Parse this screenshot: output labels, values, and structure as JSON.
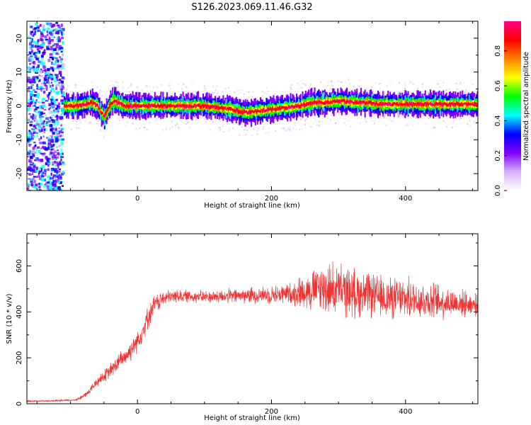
{
  "title": "S126.2023.069.11.46.G32",
  "colors": {
    "snr_line": "#ee3333",
    "colormap": [
      "#ffffff",
      "#d8b0ff",
      "#8000ff",
      "#0000ff",
      "#00ffff",
      "#00ff00",
      "#ffff00",
      "#ff8000",
      "#ff0000",
      "#ff0080"
    ]
  },
  "chart_data": [
    {
      "type": "heatmap",
      "xlabel": "Height of straight line (km)",
      "ylabel": "Frequency (Hz)",
      "xlim": [
        -165,
        508
      ],
      "ylim": [
        -25,
        25
      ],
      "xticks": [
        0,
        200,
        400
      ],
      "yticks": [
        -20,
        -10,
        0,
        10,
        20
      ],
      "colorbar": {
        "label": "Normalized spectral amplitude",
        "range": [
          0,
          0.97
        ],
        "ticks": [
          "0.0",
          "0.2",
          "0.4",
          "0.6",
          "0.8"
        ]
      },
      "ridge": {
        "x": [
          -115,
          -100,
          -90,
          -80,
          -70,
          -60,
          -55,
          -50,
          -45,
          -40,
          -35,
          -30,
          -25,
          -20,
          0,
          50,
          100,
          120,
          140,
          160,
          180,
          200,
          220,
          240,
          260,
          280,
          300,
          320,
          340,
          360,
          380,
          400,
          420,
          440,
          460,
          480,
          500,
          508
        ],
        "freq": [
          0,
          0,
          0,
          0.5,
          1,
          0,
          -2,
          -3,
          -1,
          1,
          1.5,
          1,
          0.5,
          0,
          0,
          0,
          0,
          -0.5,
          -1,
          -2,
          -1.5,
          -1,
          -0.5,
          0,
          1,
          1,
          1.5,
          1,
          1,
          0.5,
          0.5,
          0.5,
          0.5,
          0.5,
          0.5,
          0.5,
          0.5,
          0.5
        ]
      }
    },
    {
      "type": "line",
      "xlabel": "Height of straight line (km)",
      "ylabel": "SNR (10 * v/v)",
      "xlim": [
        -165,
        508
      ],
      "ylim": [
        0,
        740
      ],
      "xticks": [
        0,
        200,
        400
      ],
      "yticks": [
        0,
        200,
        400,
        600
      ],
      "series": [
        {
          "x": [
            -165,
            -150,
            -130,
            -110,
            -95,
            -85,
            -75,
            -65,
            -55,
            -45,
            -35,
            -25,
            -15,
            -5,
            5,
            15,
            25,
            40,
            60,
            100,
            150,
            200,
            230,
            250,
            270,
            290,
            310,
            330,
            350,
            370,
            390,
            410,
            430,
            450,
            470,
            490,
            508
          ],
          "values": [
            12,
            12,
            12,
            14,
            16,
            25,
            45,
            80,
            110,
            130,
            160,
            190,
            215,
            255,
            300,
            370,
            430,
            460,
            470,
            465,
            470,
            475,
            480,
            490,
            500,
            500,
            490,
            480,
            470,
            460,
            460,
            455,
            450,
            445,
            440,
            435,
            430
          ],
          "noise": [
            3,
            3,
            3,
            4,
            4,
            8,
            12,
            18,
            22,
            28,
            32,
            36,
            40,
            42,
            45,
            45,
            40,
            30,
            25,
            25,
            30,
            35,
            45,
            70,
            95,
            105,
            100,
            95,
            85,
            85,
            80,
            80,
            75,
            70,
            60,
            50,
            40
          ]
        }
      ]
    }
  ]
}
